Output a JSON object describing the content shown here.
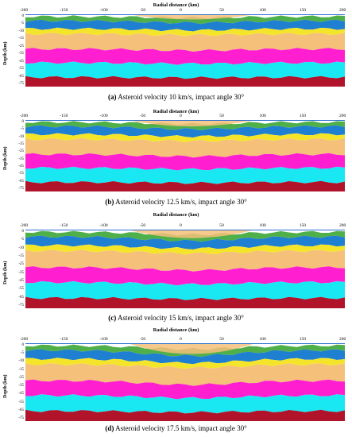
{
  "figure": {
    "x_axis_label": "Radial distance (km)",
    "y_axis_label": "Depth (km)",
    "x_ticks": [
      "-200",
      "-150",
      "-100",
      "-50",
      "0",
      "50",
      "100",
      "150",
      "200"
    ],
    "y_ticks": [
      "0",
      "-5",
      "-10",
      "-15",
      "-25",
      "-35",
      "-45",
      "-55",
      "-65",
      "-75"
    ],
    "layer_colors": {
      "top_green": "#4fb04a",
      "blue": "#1f7fd0",
      "yellow": "#f5e52a",
      "orange": "#f4c07a",
      "magenta": "#ff1fd0",
      "cyan": "#19e8f2",
      "red": "#b0132a"
    }
  },
  "panels": [
    {
      "id": "a",
      "caption_label": "(a)",
      "caption_text": "Asteroid velocity 10 km/s, impact angle 30°",
      "crater_depth": 0.35
    },
    {
      "id": "b",
      "caption_label": "(b)",
      "caption_text": "Asteroid velocity 12.5 km/s, impact angle 30°",
      "crater_depth": 0.5
    },
    {
      "id": "c",
      "caption_label": "(c)",
      "caption_text": "Asteroid velocity 15 km/s, impact angle 30°",
      "crater_depth": 0.65
    },
    {
      "id": "d",
      "caption_label": "(d)",
      "caption_text": "Asteroid velocity 17.5 km/s, impact angle 30°",
      "crater_depth": 0.9
    }
  ]
}
